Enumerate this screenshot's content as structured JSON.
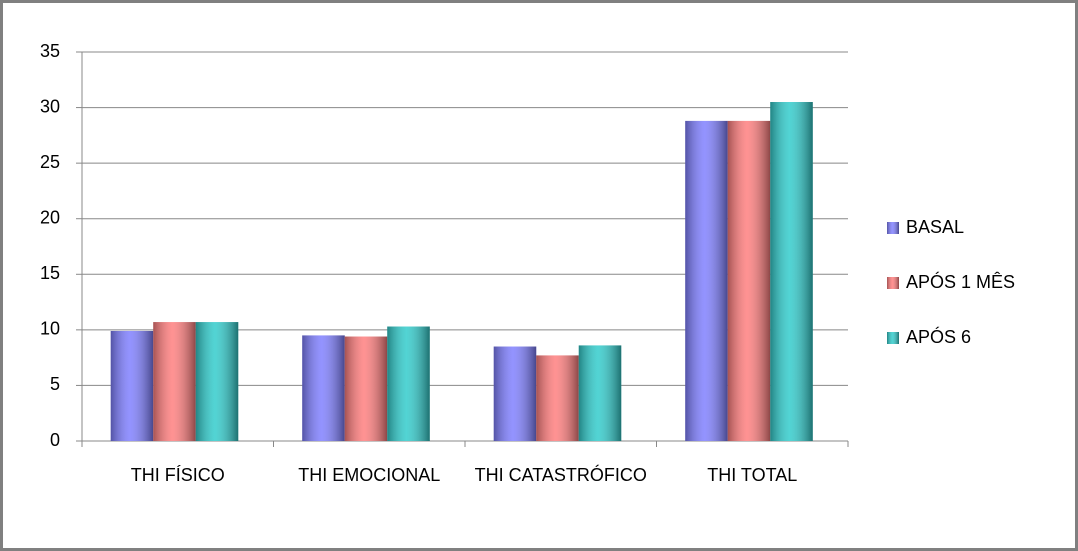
{
  "chart_data": {
    "type": "bar",
    "categories": [
      "THI FÍSICO",
      "THI EMOCIONAL",
      "THI CATASTRÓFICO",
      "THI TOTAL"
    ],
    "series": [
      {
        "name": "BASAL",
        "color": "#8080ff",
        "values": [
          9.9,
          9.5,
          8.5,
          28.8
        ]
      },
      {
        "name": "APÓS 1 MÊS",
        "color": "#ff7f7f",
        "values": [
          10.7,
          9.4,
          7.7,
          28.8
        ]
      },
      {
        "name": "APÓS 6",
        "color": "#33cccc",
        "values": [
          10.7,
          10.3,
          8.6,
          30.5
        ]
      }
    ],
    "ylim": [
      0,
      35
    ],
    "yticks": [
      0,
      5,
      10,
      15,
      20,
      25,
      30,
      35
    ],
    "grid": true,
    "legend": "right"
  }
}
